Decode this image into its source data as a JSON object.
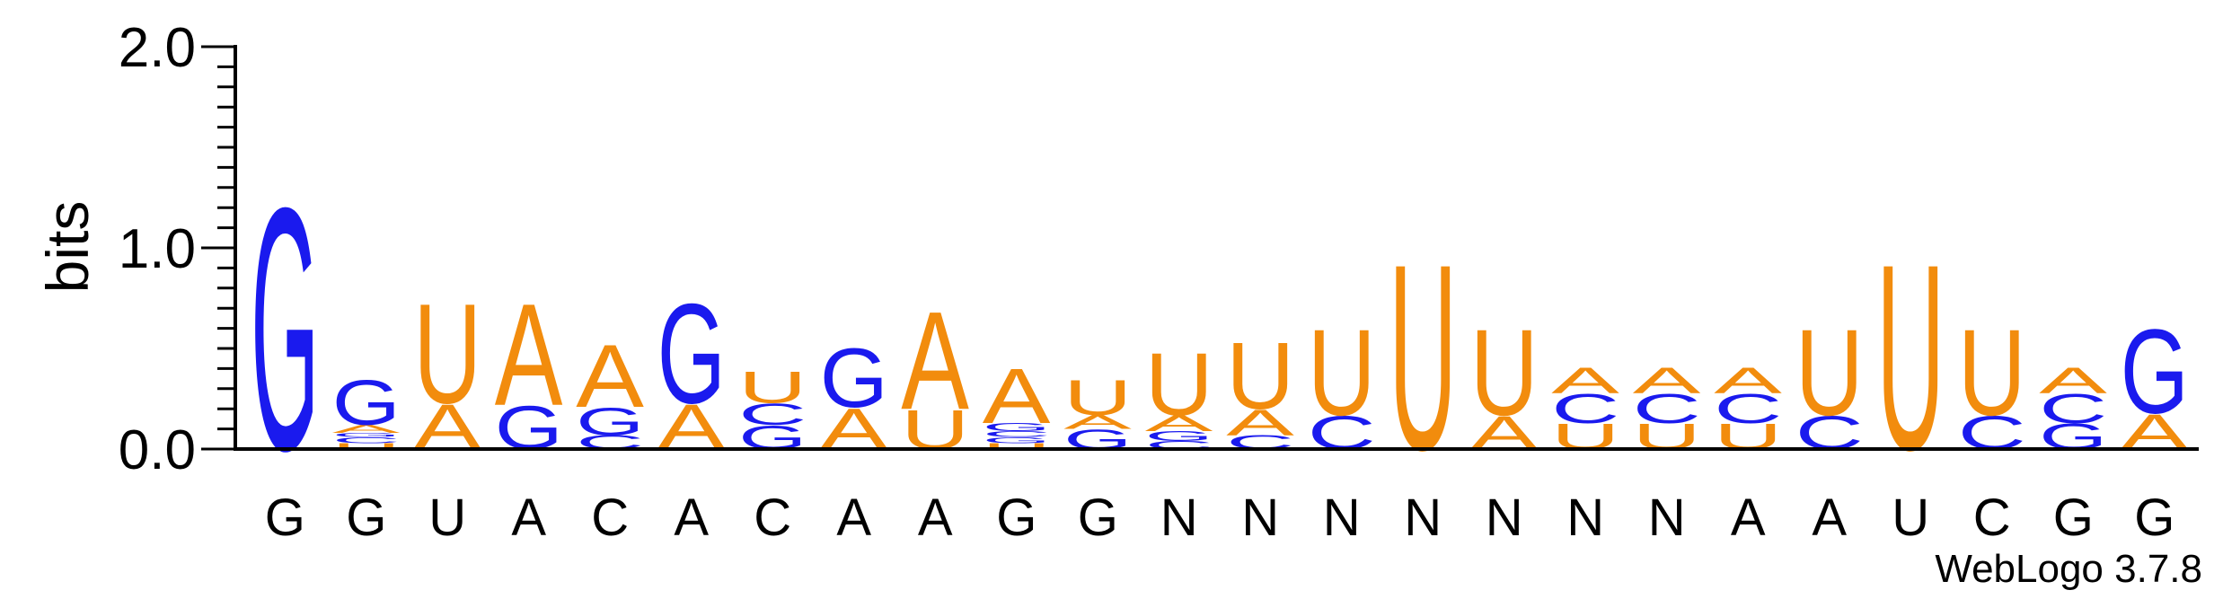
{
  "chart_data": {
    "type": "sequence_logo",
    "ylabel": "bits",
    "ylim": [
      0,
      2.0
    ],
    "yticks": [
      {
        "value": 0.0,
        "label": "0.0"
      },
      {
        "value": 1.0,
        "label": "1.0"
      },
      {
        "value": 2.0,
        "label": "2.0"
      }
    ],
    "minor_tick_step": 0.1,
    "credit": "WebLogo 3.7.8",
    "colors": {
      "G": "#1a1aee",
      "C": "#1a1aee",
      "A": "#f28c0d",
      "U": "#f28c0d"
    },
    "positions": [
      {
        "label": "G",
        "stack": [
          {
            "letter": "G",
            "bits": 1.24
          }
        ]
      },
      {
        "label": "G",
        "stack": [
          {
            "letter": "U",
            "bits": 0.03
          },
          {
            "letter": "C",
            "bits": 0.03
          },
          {
            "letter": "G",
            "bits": 0.02
          },
          {
            "letter": "A",
            "bits": 0.04
          },
          {
            "letter": "G",
            "bits": 0.23
          }
        ]
      },
      {
        "label": "U",
        "stack": [
          {
            "letter": "A",
            "bits": 0.23
          },
          {
            "letter": "U",
            "bits": 0.51
          }
        ]
      },
      {
        "label": "A",
        "stack": [
          {
            "letter": "G",
            "bits": 0.22
          },
          {
            "letter": "A",
            "bits": 0.52
          }
        ]
      },
      {
        "label": "C",
        "stack": [
          {
            "letter": "C",
            "bits": 0.07
          },
          {
            "letter": "G",
            "bits": 0.14
          },
          {
            "letter": "A",
            "bits": 0.32
          }
        ]
      },
      {
        "label": "A",
        "stack": [
          {
            "letter": "A",
            "bits": 0.23
          },
          {
            "letter": "G",
            "bits": 0.51
          }
        ]
      },
      {
        "label": "C",
        "stack": [
          {
            "letter": "G",
            "bits": 0.12
          },
          {
            "letter": "C",
            "bits": 0.11
          },
          {
            "letter": "U",
            "bits": 0.16
          }
        ]
      },
      {
        "label": "A",
        "stack": [
          {
            "letter": "A",
            "bits": 0.21
          },
          {
            "letter": "G",
            "bits": 0.3
          }
        ]
      },
      {
        "label": "A",
        "stack": [
          {
            "letter": "U",
            "bits": 0.2
          },
          {
            "letter": "A",
            "bits": 0.5
          }
        ]
      },
      {
        "label": "G",
        "stack": [
          {
            "letter": "U",
            "bits": 0.03
          },
          {
            "letter": "G",
            "bits": 0.03
          },
          {
            "letter": "C",
            "bits": 0.03
          },
          {
            "letter": "G",
            "bits": 0.04
          },
          {
            "letter": "A",
            "bits": 0.28
          }
        ]
      },
      {
        "label": "G",
        "stack": [
          {
            "letter": "G",
            "bits": 0.1
          },
          {
            "letter": "A",
            "bits": 0.07
          },
          {
            "letter": "U",
            "bits": 0.18
          }
        ]
      },
      {
        "label": "N",
        "stack": [
          {
            "letter": "C",
            "bits": 0.04
          },
          {
            "letter": "G",
            "bits": 0.05
          },
          {
            "letter": "A",
            "bits": 0.08
          },
          {
            "letter": "U",
            "bits": 0.32
          }
        ]
      },
      {
        "label": "N",
        "stack": [
          {
            "letter": "C",
            "bits": 0.07
          },
          {
            "letter": "A",
            "bits": 0.13
          },
          {
            "letter": "U",
            "bits": 0.34
          }
        ]
      },
      {
        "label": "N",
        "stack": [
          {
            "letter": "C",
            "bits": 0.17
          },
          {
            "letter": "U",
            "bits": 0.44
          }
        ]
      },
      {
        "label": "N",
        "stack": [
          {
            "letter": "U",
            "bits": 0.95
          }
        ]
      },
      {
        "label": "N",
        "stack": [
          {
            "letter": "A",
            "bits": 0.17
          },
          {
            "letter": "U",
            "bits": 0.44
          }
        ]
      },
      {
        "label": "N",
        "stack": [
          {
            "letter": "U",
            "bits": 0.13
          },
          {
            "letter": "C",
            "bits": 0.15
          },
          {
            "letter": "A",
            "bits": 0.13
          }
        ]
      },
      {
        "label": "N",
        "stack": [
          {
            "letter": "U",
            "bits": 0.13
          },
          {
            "letter": "C",
            "bits": 0.15
          },
          {
            "letter": "A",
            "bits": 0.13
          }
        ]
      },
      {
        "label": "A",
        "stack": [
          {
            "letter": "U",
            "bits": 0.13
          },
          {
            "letter": "C",
            "bits": 0.15
          },
          {
            "letter": "A",
            "bits": 0.13
          }
        ]
      },
      {
        "label": "A",
        "stack": [
          {
            "letter": "C",
            "bits": 0.17
          },
          {
            "letter": "U",
            "bits": 0.44
          }
        ]
      },
      {
        "label": "U",
        "stack": [
          {
            "letter": "U",
            "bits": 0.95
          }
        ]
      },
      {
        "label": "C",
        "stack": [
          {
            "letter": "C",
            "bits": 0.17
          },
          {
            "letter": "U",
            "bits": 0.44
          }
        ]
      },
      {
        "label": "G",
        "stack": [
          {
            "letter": "G",
            "bits": 0.13
          },
          {
            "letter": "C",
            "bits": 0.15
          },
          {
            "letter": "A",
            "bits": 0.13
          }
        ]
      },
      {
        "label": "G",
        "stack": [
          {
            "letter": "A",
            "bits": 0.18
          },
          {
            "letter": "G",
            "bits": 0.43
          }
        ]
      }
    ]
  }
}
